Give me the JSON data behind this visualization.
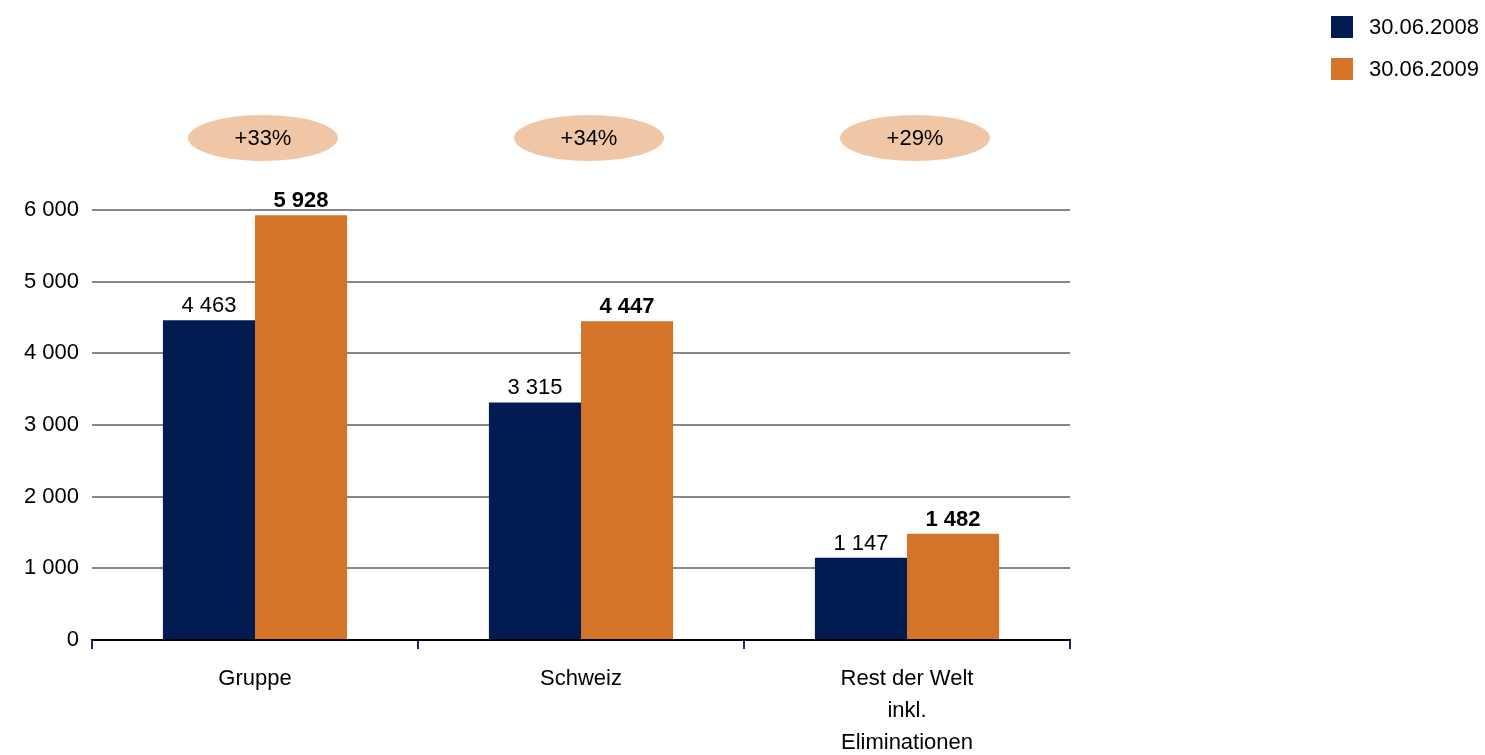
{
  "chart_data": {
    "type": "bar",
    "categories": [
      "Gruppe",
      "Schweiz",
      "Rest der Welt inkl. Eliminationen"
    ],
    "series": [
      {
        "name": "30.06.2008",
        "color": "#021c52",
        "values": [
          4463,
          3315,
          1147
        ],
        "value_labels": [
          "4 463",
          "3 315",
          "1 147"
        ]
      },
      {
        "name": "30.06.2009",
        "color": "#d37429",
        "values": [
          5928,
          4447,
          1482
        ],
        "value_labels": [
          "5 928",
          "4 447",
          "1 482"
        ]
      }
    ],
    "ylim": [
      0,
      6000
    ],
    "yticks": [
      0,
      {
        "value": 1000,
        "label": "1 000"
      },
      {
        "value": 2000,
        "label": "2 000"
      },
      {
        "value": 3000,
        "label": "3 000"
      },
      {
        "value": 4000,
        "label": "4 000"
      },
      {
        "value": 5000,
        "label": "5 000"
      },
      {
        "value": 6000,
        "label": "6 000"
      }
    ],
    "grid": "y",
    "legend": "top right",
    "annotations": [
      "+33%",
      "+34%",
      "+29%"
    ]
  }
}
